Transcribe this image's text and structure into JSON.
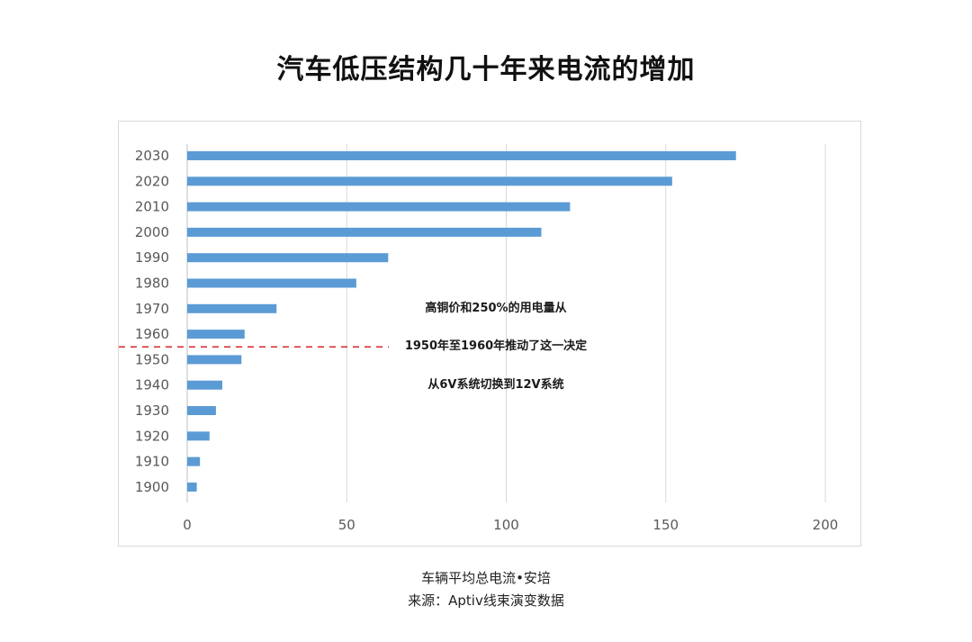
{
  "title": "汽车低压结构几十年来电流的增加",
  "caption_line1": "车辆平均总电流•安培",
  "caption_line2": "来源：Aptiv线束演变数据",
  "chart_data": {
    "type": "bar",
    "orientation": "horizontal",
    "categories": [
      "2030",
      "2020",
      "2010",
      "2000",
      "1990",
      "1980",
      "1970",
      "1960",
      "1950",
      "1940",
      "1930",
      "1920",
      "1910",
      "1900"
    ],
    "values": [
      172,
      152,
      120,
      111,
      63,
      53,
      28,
      18,
      17,
      11,
      9,
      7,
      4,
      3
    ],
    "xlim": [
      0,
      200
    ],
    "xticks": [
      0,
      50,
      100,
      150,
      200
    ],
    "grid": true,
    "bar_color": "#5b9bd5",
    "reference_line": {
      "between": [
        "1960",
        "1950"
      ],
      "style": "dashed",
      "color": "#d62728"
    },
    "annotations": [
      "高铜价和250%的用电量从",
      "1950年至1960年推动了这一决定",
      "从6V系统切换到12V系统"
    ]
  }
}
